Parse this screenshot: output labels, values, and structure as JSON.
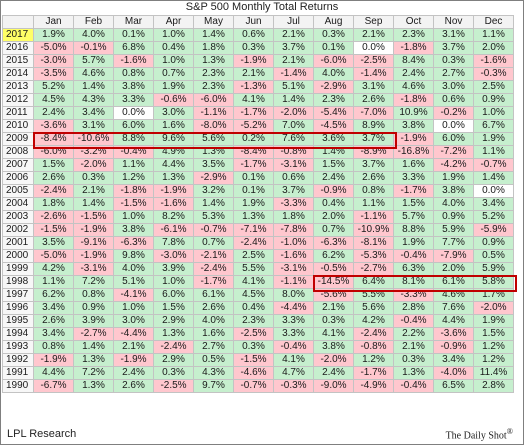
{
  "title": "S&P 500 Monthly Total Returns",
  "footer": {
    "source": "LPL Research",
    "credit": "The Daily Shot",
    "credit_mark": "®"
  },
  "colors": {
    "positive": "#c6efce",
    "negative": "#ffc7ce",
    "highlight_year": "#ffff66",
    "outline": "#c00000"
  },
  "highlight_year": "2017",
  "outlined_ranges": [
    {
      "year": "2009",
      "from_month": "Jan",
      "to_month": "Sep"
    },
    {
      "year": "1998",
      "from_month": "Aug",
      "to_month": "Dec"
    }
  ],
  "chart_data": {
    "type": "table",
    "title": "S&P 500 Monthly Total Returns",
    "columns": [
      "Jan",
      "Feb",
      "Mar",
      "Apr",
      "May",
      "Jun",
      "Jul",
      "Aug",
      "Sep",
      "Oct",
      "Nov",
      "Dec"
    ],
    "rows": [
      {
        "year": "2017",
        "values": [
          "1.9%",
          "4.0%",
          "0.1%",
          "1.0%",
          "1.4%",
          "0.6%",
          "2.1%",
          "0.3%",
          "2.1%",
          "2.3%",
          "3.1%",
          "1.1%"
        ]
      },
      {
        "year": "2016",
        "values": [
          "-5.0%",
          "-0.1%",
          "6.8%",
          "0.4%",
          "1.8%",
          "0.3%",
          "3.7%",
          "0.1%",
          "0.0%",
          "-1.8%",
          "3.7%",
          "2.0%"
        ]
      },
      {
        "year": "2015",
        "values": [
          "-3.0%",
          "5.7%",
          "-1.6%",
          "1.0%",
          "1.3%",
          "-1.9%",
          "2.1%",
          "-6.0%",
          "-2.5%",
          "8.4%",
          "0.3%",
          "-1.6%"
        ]
      },
      {
        "year": "2014",
        "values": [
          "-3.5%",
          "4.6%",
          "0.8%",
          "0.7%",
          "2.3%",
          "2.1%",
          "-1.4%",
          "4.0%",
          "-1.4%",
          "2.4%",
          "2.7%",
          "-0.3%"
        ]
      },
      {
        "year": "2013",
        "values": [
          "5.2%",
          "1.4%",
          "3.8%",
          "1.9%",
          "2.3%",
          "-1.3%",
          "5.1%",
          "-2.9%",
          "3.1%",
          "4.6%",
          "3.0%",
          "2.5%"
        ]
      },
      {
        "year": "2012",
        "values": [
          "4.5%",
          "4.3%",
          "3.3%",
          "-0.6%",
          "-6.0%",
          "4.1%",
          "1.4%",
          "2.3%",
          "2.6%",
          "-1.8%",
          "0.6%",
          "0.9%"
        ]
      },
      {
        "year": "2011",
        "values": [
          "2.4%",
          "3.4%",
          "0.0%",
          "3.0%",
          "-1.1%",
          "-1.7%",
          "-2.0%",
          "-5.4%",
          "-7.0%",
          "10.9%",
          "-0.2%",
          "1.0%"
        ]
      },
      {
        "year": "2010",
        "values": [
          "-3.6%",
          "3.1%",
          "6.0%",
          "1.6%",
          "-8.0%",
          "-5.2%",
          "7.0%",
          "-4.5%",
          "8.9%",
          "3.8%",
          "0.0%",
          "6.7%"
        ]
      },
      {
        "year": "2009",
        "values": [
          "-8.4%",
          "-10.6%",
          "8.8%",
          "9.6%",
          "5.6%",
          "0.2%",
          "7.6%",
          "3.6%",
          "3.7%",
          "-1.9%",
          "6.0%",
          "1.9%"
        ]
      },
      {
        "year": "2008",
        "values": [
          "-6.0%",
          "-3.2%",
          "-0.4%",
          "4.9%",
          "1.3%",
          "-8.4%",
          "-0.8%",
          "1.4%",
          "-8.9%",
          "-16.8%",
          "-7.2%",
          "1.1%"
        ]
      },
      {
        "year": "2007",
        "values": [
          "1.5%",
          "-2.0%",
          "1.1%",
          "4.4%",
          "3.5%",
          "-1.7%",
          "-3.1%",
          "1.5%",
          "3.7%",
          "1.6%",
          "-4.2%",
          "-0.7%"
        ]
      },
      {
        "year": "2006",
        "values": [
          "2.6%",
          "0.3%",
          "1.2%",
          "1.3%",
          "-2.9%",
          "0.1%",
          "0.6%",
          "2.4%",
          "2.6%",
          "3.3%",
          "1.9%",
          "1.4%"
        ]
      },
      {
        "year": "2005",
        "values": [
          "-2.4%",
          "2.1%",
          "-1.8%",
          "-1.9%",
          "3.2%",
          "0.1%",
          "3.7%",
          "-0.9%",
          "0.8%",
          "-1.7%",
          "3.8%",
          "0.0%"
        ]
      },
      {
        "year": "2004",
        "values": [
          "1.8%",
          "1.4%",
          "-1.5%",
          "-1.6%",
          "1.4%",
          "1.9%",
          "-3.3%",
          "0.4%",
          "1.1%",
          "1.5%",
          "4.0%",
          "3.4%"
        ]
      },
      {
        "year": "2003",
        "values": [
          "-2.6%",
          "-1.5%",
          "1.0%",
          "8.2%",
          "5.3%",
          "1.3%",
          "1.8%",
          "2.0%",
          "-1.1%",
          "5.7%",
          "0.9%",
          "5.2%"
        ]
      },
      {
        "year": "2002",
        "values": [
          "-1.5%",
          "-1.9%",
          "3.8%",
          "-6.1%",
          "-0.7%",
          "-7.1%",
          "-7.8%",
          "0.7%",
          "-10.9%",
          "8.8%",
          "5.9%",
          "-5.9%"
        ]
      },
      {
        "year": "2001",
        "values": [
          "3.5%",
          "-9.1%",
          "-6.3%",
          "7.8%",
          "0.7%",
          "-2.4%",
          "-1.0%",
          "-6.3%",
          "-8.1%",
          "1.9%",
          "7.7%",
          "0.9%"
        ]
      },
      {
        "year": "2000",
        "values": [
          "-5.0%",
          "-1.9%",
          "9.8%",
          "-3.0%",
          "-2.1%",
          "2.5%",
          "-1.6%",
          "6.2%",
          "-5.3%",
          "-0.4%",
          "-7.9%",
          "0.5%"
        ]
      },
      {
        "year": "1999",
        "values": [
          "4.2%",
          "-3.1%",
          "4.0%",
          "3.9%",
          "-2.4%",
          "5.5%",
          "-3.1%",
          "-0.5%",
          "-2.7%",
          "6.3%",
          "2.0%",
          "5.9%"
        ]
      },
      {
        "year": "1998",
        "values": [
          "1.1%",
          "7.2%",
          "5.1%",
          "1.0%",
          "-1.7%",
          "4.1%",
          "-1.1%",
          "-14.5%",
          "6.4%",
          "8.1%",
          "6.1%",
          "5.8%"
        ]
      },
      {
        "year": "1997",
        "values": [
          "6.2%",
          "0.8%",
          "-4.1%",
          "6.0%",
          "6.1%",
          "4.5%",
          "8.0%",
          "-5.6%",
          "5.5%",
          "-3.3%",
          "4.6%",
          "1.7%"
        ]
      },
      {
        "year": "1996",
        "values": [
          "3.4%",
          "0.9%",
          "1.0%",
          "1.5%",
          "2.6%",
          "0.4%",
          "-4.4%",
          "2.1%",
          "5.6%",
          "2.8%",
          "7.6%",
          "-2.0%"
        ]
      },
      {
        "year": "1995",
        "values": [
          "2.6%",
          "3.9%",
          "3.0%",
          "2.9%",
          "4.0%",
          "2.3%",
          "3.3%",
          "0.3%",
          "4.2%",
          "-0.4%",
          "4.4%",
          "1.9%"
        ]
      },
      {
        "year": "1994",
        "values": [
          "3.4%",
          "-2.7%",
          "-4.4%",
          "1.3%",
          "1.6%",
          "-2.5%",
          "3.3%",
          "4.1%",
          "-2.4%",
          "2.2%",
          "-3.6%",
          "1.5%"
        ]
      },
      {
        "year": "1993",
        "values": [
          "0.8%",
          "1.4%",
          "2.1%",
          "-2.4%",
          "2.7%",
          "0.3%",
          "-0.4%",
          "3.8%",
          "-0.8%",
          "2.1%",
          "-0.9%",
          "1.2%"
        ]
      },
      {
        "year": "1992",
        "values": [
          "-1.9%",
          "1.3%",
          "-1.9%",
          "2.9%",
          "0.5%",
          "-1.5%",
          "4.1%",
          "-2.0%",
          "1.2%",
          "0.3%",
          "3.4%",
          "1.2%"
        ]
      },
      {
        "year": "1991",
        "values": [
          "4.4%",
          "7.2%",
          "2.4%",
          "0.3%",
          "4.3%",
          "-4.6%",
          "4.7%",
          "2.4%",
          "-1.7%",
          "1.3%",
          "-4.0%",
          "11.4%"
        ]
      },
      {
        "year": "1990",
        "values": [
          "-6.7%",
          "1.3%",
          "2.6%",
          "-2.5%",
          "9.7%",
          "-0.7%",
          "-0.3%",
          "-9.0%",
          "-4.9%",
          "-0.4%",
          "6.5%",
          "2.8%"
        ]
      }
    ]
  }
}
